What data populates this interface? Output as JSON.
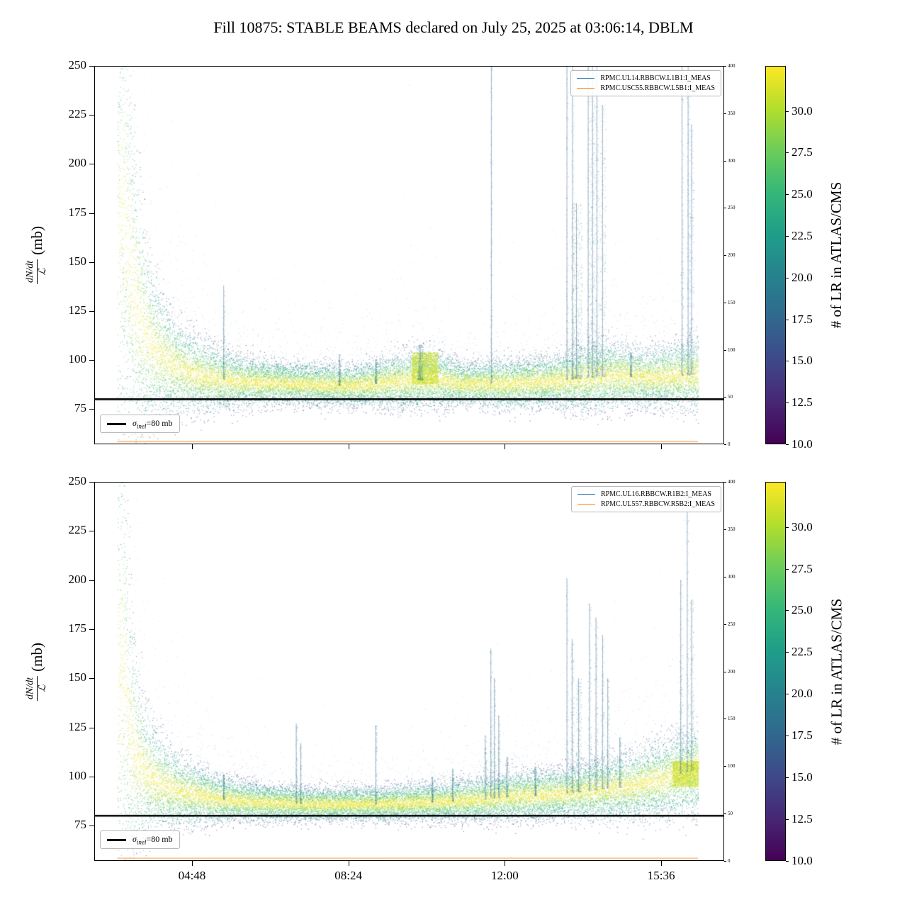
{
  "title": "Fill 10875: STABLE BEAMS declared on July 25, 2025 at 03:06:14, DBLM",
  "ylabel": {
    "numerator": "dN/dt",
    "denominator": "ℒ",
    "unit": "(mb)"
  },
  "chart_data": [
    {
      "type": "scatter",
      "legend": [
        {
          "label": "RPMC.UL14.RBBCW.L1B1:I_MEAS",
          "color": "#1f77b4"
        },
        {
          "label": "RPMC.USC55.RBBCW.L5B1:I_MEAS",
          "color": "#ff7f0e"
        }
      ],
      "hline": {
        "y": 80,
        "color": "#000000",
        "label_sigma": "σ",
        "label_sub": "inel",
        "label_rest": "=80 mb"
      },
      "xlim_hours": [
        2.55,
        17.05
      ],
      "ylim": [
        57,
        250
      ],
      "yticks": [
        75,
        100,
        125,
        150,
        175,
        200,
        225,
        250
      ],
      "xticks": [
        {
          "hours": 4.8,
          "label": "04:48"
        },
        {
          "hours": 8.4,
          "label": "08:24"
        },
        {
          "hours": 12.0,
          "label": "12:00"
        },
        {
          "hours": 15.6,
          "label": "15:36"
        }
      ],
      "right_axis": {
        "lim": [
          0,
          400
        ],
        "ticks": [
          0,
          50,
          100,
          150,
          200,
          250,
          300,
          350,
          400
        ]
      },
      "colorbar": {
        "label": "# of LR in ATLAS/CMS",
        "cmap": "viridis",
        "vmin": 10.0,
        "vmax": 32.7,
        "ticks": [
          "10.0",
          "12.5",
          "15.0",
          "17.5",
          "20.0",
          "22.5",
          "25.0",
          "27.5",
          "30.0"
        ]
      },
      "data_window_hours": [
        3.08,
        16.45
      ],
      "profile": [
        [
          3.08,
          150,
          60
        ],
        [
          3.18,
          185,
          60
        ],
        [
          3.3,
          160,
          55
        ],
        [
          3.45,
          135,
          40
        ],
        [
          3.65,
          118,
          28
        ],
        [
          3.9,
          106,
          18
        ],
        [
          4.2,
          100,
          13
        ],
        [
          4.6,
          95,
          10
        ],
        [
          5.2,
          91,
          8
        ],
        [
          6.0,
          89,
          6
        ],
        [
          7.0,
          88,
          5
        ],
        [
          8.5,
          87,
          5
        ],
        [
          9.9,
          90,
          7
        ],
        [
          10.45,
          90,
          7
        ],
        [
          11.0,
          88,
          5
        ],
        [
          12.0,
          88,
          6
        ],
        [
          13.0,
          89,
          6
        ],
        [
          13.8,
          91,
          8
        ],
        [
          14.5,
          92,
          8
        ],
        [
          15.3,
          91,
          7
        ],
        [
          16.0,
          92,
          8
        ],
        [
          16.45,
          93,
          9
        ]
      ],
      "spikes": [
        [
          5.53,
          138,
          0.05
        ],
        [
          8.19,
          103,
          0.04
        ],
        [
          9.03,
          100,
          0.04
        ],
        [
          10.05,
          108,
          0.12
        ],
        [
          11.69,
          270,
          0.05
        ],
        [
          13.43,
          270,
          0.05
        ],
        [
          13.56,
          270,
          0.06
        ],
        [
          13.65,
          180,
          0.25
        ],
        [
          13.92,
          270,
          0.07
        ],
        [
          14.02,
          270,
          0.12
        ],
        [
          14.12,
          270,
          0.07
        ],
        [
          14.25,
          230,
          0.15
        ],
        [
          14.9,
          104,
          0.04
        ],
        [
          16.08,
          270,
          0.06
        ],
        [
          16.22,
          270,
          0.08
        ],
        [
          16.3,
          220,
          0.1
        ]
      ],
      "bands": [
        {
          "t0": 9.85,
          "t1": 10.45,
          "v0": 88,
          "v1": 104
        }
      ],
      "flat_trace": {
        "y_mb": 58.4,
        "color": "#ff7f0e"
      }
    },
    {
      "type": "scatter",
      "legend": [
        {
          "label": "RPMC.UL16.RBBCW.R1B2:I_MEAS",
          "color": "#1f77b4"
        },
        {
          "label": "RPMC.UL557.RBBCW.R5B2:I_MEAS",
          "color": "#ff7f0e"
        }
      ],
      "hline": {
        "y": 80,
        "color": "#000000",
        "label_sigma": "σ",
        "label_sub": "inel",
        "label_rest": "=80 mb"
      },
      "xlim_hours": [
        2.55,
        17.05
      ],
      "ylim": [
        57,
        250
      ],
      "yticks": [
        75,
        100,
        125,
        150,
        175,
        200,
        225,
        250
      ],
      "xticks": [
        {
          "hours": 4.8,
          "label": "04:48"
        },
        {
          "hours": 8.4,
          "label": "08:24"
        },
        {
          "hours": 12.0,
          "label": "12:00"
        },
        {
          "hours": 15.6,
          "label": "15:36"
        }
      ],
      "right_axis": {
        "lim": [
          0,
          400
        ],
        "ticks": [
          0,
          50,
          100,
          150,
          200,
          250,
          300,
          350,
          400
        ]
      },
      "colorbar": {
        "label": "# of LR in ATLAS/CMS",
        "cmap": "viridis",
        "vmin": 10.0,
        "vmax": 32.7,
        "ticks": [
          "10.0",
          "12.5",
          "15.0",
          "17.5",
          "20.0",
          "22.5",
          "25.0",
          "27.5",
          "30.0"
        ]
      },
      "data_window_hours": [
        3.08,
        16.45
      ],
      "profile": [
        [
          3.08,
          140,
          55
        ],
        [
          3.2,
          170,
          60
        ],
        [
          3.32,
          130,
          40
        ],
        [
          3.5,
          110,
          24
        ],
        [
          3.75,
          101,
          15
        ],
        [
          4.1,
          96,
          11
        ],
        [
          4.6,
          92,
          8
        ],
        [
          5.3,
          89,
          6
        ],
        [
          6.2,
          87,
          4.5
        ],
        [
          7.5,
          86,
          4
        ],
        [
          9.0,
          86,
          4
        ],
        [
          10.2,
          87,
          4.5
        ],
        [
          11.2,
          88,
          5
        ],
        [
          12.2,
          90,
          6
        ],
        [
          13.2,
          91,
          6
        ],
        [
          14.0,
          93,
          7
        ],
        [
          14.8,
          95,
          8
        ],
        [
          15.5,
          98,
          9
        ],
        [
          16.0,
          101,
          10
        ],
        [
          16.45,
          104,
          11
        ]
      ],
      "spikes": [
        [
          5.53,
          101,
          0.04
        ],
        [
          7.2,
          127,
          0.04
        ],
        [
          7.3,
          117,
          0.04
        ],
        [
          9.03,
          126,
          0.04
        ],
        [
          10.33,
          100,
          0.04
        ],
        [
          10.8,
          104,
          0.04
        ],
        [
          11.55,
          121,
          0.05
        ],
        [
          11.68,
          165,
          0.06
        ],
        [
          11.76,
          150,
          0.05
        ],
        [
          11.86,
          131,
          0.05
        ],
        [
          12.05,
          110,
          0.05
        ],
        [
          12.7,
          105,
          0.05
        ],
        [
          13.43,
          201,
          0.05
        ],
        [
          13.55,
          170,
          0.08
        ],
        [
          13.7,
          150,
          0.12
        ],
        [
          13.95,
          188,
          0.07
        ],
        [
          14.1,
          181,
          0.08
        ],
        [
          14.25,
          172,
          0.07
        ],
        [
          14.37,
          150,
          0.06
        ],
        [
          14.65,
          120,
          0.05
        ],
        [
          16.05,
          200,
          0.08
        ],
        [
          16.2,
          245,
          0.06
        ],
        [
          16.3,
          190,
          0.08
        ]
      ],
      "bands": [
        {
          "t0": 15.85,
          "t1": 16.45,
          "v0": 95,
          "v1": 108
        }
      ],
      "flat_trace": {
        "y_mb": 58.4,
        "color": "#ff7f0e"
      }
    }
  ]
}
